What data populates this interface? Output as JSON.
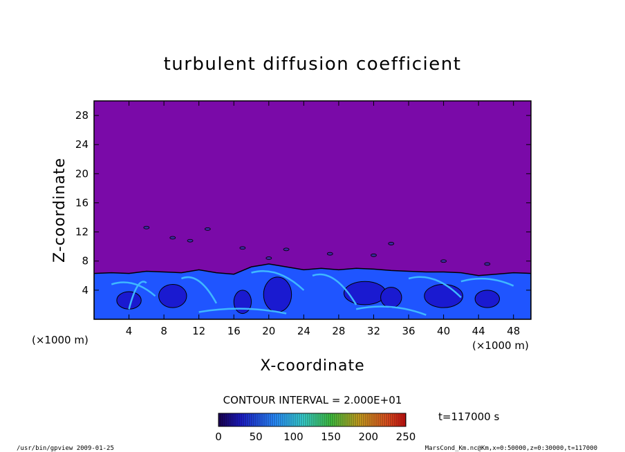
{
  "chart_data": {
    "type": "heatmap",
    "title": "turbulent diffusion coefficient",
    "xlabel": "X-coordinate",
    "ylabel": "Z-coordinate",
    "x_unit_left": "(×1000 m)",
    "x_unit_right": "(×1000 m)",
    "xlim": [
      0,
      50
    ],
    "ylim": [
      0,
      30
    ],
    "x_ticks": [
      4,
      8,
      12,
      16,
      20,
      24,
      28,
      32,
      36,
      40,
      44,
      48
    ],
    "y_ticks": [
      4,
      8,
      12,
      16,
      20,
      24,
      28
    ],
    "boundary_layer_top_km": [
      [
        0,
        6.3
      ],
      [
        2,
        6.4
      ],
      [
        4,
        6.3
      ],
      [
        6,
        6.6
      ],
      [
        8,
        6.5
      ],
      [
        10,
        6.4
      ],
      [
        12,
        6.8
      ],
      [
        14,
        6.4
      ],
      [
        16,
        6.2
      ],
      [
        18,
        7.2
      ],
      [
        20,
        7.6
      ],
      [
        22,
        7.2
      ],
      [
        24,
        6.8
      ],
      [
        26,
        7.0
      ],
      [
        28,
        6.8
      ],
      [
        30,
        7.0
      ],
      [
        32,
        6.9
      ],
      [
        34,
        6.7
      ],
      [
        36,
        6.6
      ],
      [
        38,
        6.5
      ],
      [
        40,
        6.5
      ],
      [
        42,
        6.4
      ],
      [
        44,
        6.0
      ],
      [
        46,
        6.2
      ],
      [
        48,
        6.4
      ],
      [
        50,
        6.3
      ]
    ],
    "background_value": 0,
    "colorbar": {
      "min": 0,
      "max": 250,
      "tick_labels": [
        "0",
        "50",
        "100",
        "150",
        "200",
        "250"
      ]
    },
    "contour_interval": "CONTOUR INTERVAL = 2.000E+01",
    "time_label": "t=117000 s"
  },
  "footer": {
    "left": "/usr/bin/gpview  2009-01-25",
    "right": "MarsCond_Km.nc@Km,x=0:50000,z=0:30000,t=117000"
  },
  "colors": {
    "background_field": "#7a0aa8",
    "mixed_layer": "#1f55ff",
    "dark_core": "#1a1ad0",
    "light_streak": "#3fb8ff",
    "frame": "#000000"
  }
}
